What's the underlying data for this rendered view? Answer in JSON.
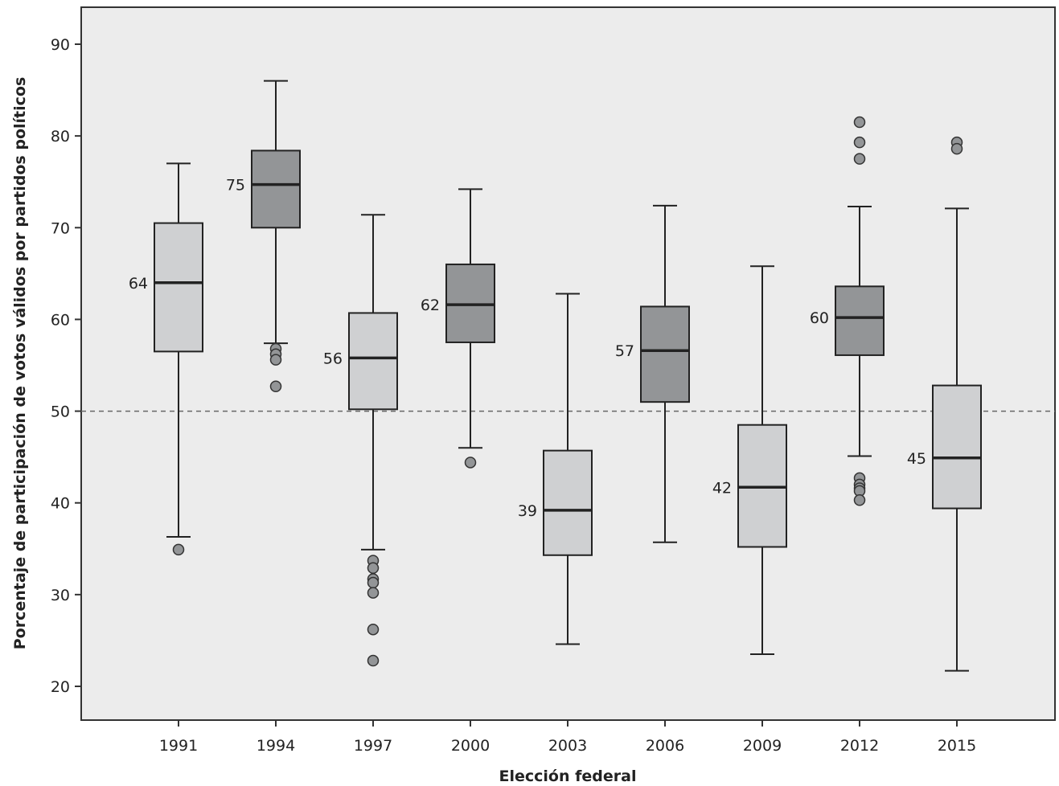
{
  "chart_data": {
    "type": "box",
    "xlabel": "Elección federal",
    "ylabel": "Porcentaje de participación de votos válidos por partidos políticos",
    "ylim": [
      17,
      94
    ],
    "yticks": [
      20,
      30,
      40,
      50,
      60,
      70,
      80,
      90
    ],
    "reference_line": {
      "y": 50,
      "style": "dashed"
    },
    "grid": false,
    "colors": {
      "light": "#cfd0d2",
      "dark": "#939597",
      "plot_bg": "#ececec",
      "line": "#222222"
    },
    "categories": [
      "1991",
      "1994",
      "1997",
      "2000",
      "2003",
      "2006",
      "2009",
      "2012",
      "2015"
    ],
    "boxes": [
      {
        "year": "1991",
        "whisker_low": 36.3,
        "q1": 56.5,
        "median": 64,
        "q3": 70.5,
        "whisker_high": 77.0,
        "median_label": "64",
        "shade": "light",
        "outliers": [
          34.9
        ]
      },
      {
        "year": "1994",
        "whisker_low": 57.4,
        "q1": 70.0,
        "median": 74.7,
        "q3": 78.4,
        "whisker_high": 86.0,
        "median_label": "75",
        "shade": "dark",
        "outliers": [
          56.8,
          56.2,
          55.6,
          52.7
        ]
      },
      {
        "year": "1997",
        "whisker_low": 34.9,
        "q1": 50.2,
        "median": 55.8,
        "q3": 60.7,
        "whisker_high": 71.4,
        "median_label": "56",
        "shade": "light",
        "outliers": [
          33.7,
          32.9,
          31.7,
          31.3,
          30.2,
          26.2,
          22.8
        ]
      },
      {
        "year": "2000",
        "whisker_low": 46.0,
        "q1": 57.5,
        "median": 61.6,
        "q3": 66.0,
        "whisker_high": 74.2,
        "median_label": "62",
        "shade": "dark",
        "outliers": [
          44.4
        ]
      },
      {
        "year": "2003",
        "whisker_low": 24.6,
        "q1": 34.3,
        "median": 39.2,
        "q3": 45.7,
        "whisker_high": 62.8,
        "median_label": "39",
        "shade": "light",
        "outliers": []
      },
      {
        "year": "2006",
        "whisker_low": 35.7,
        "q1": 51.0,
        "median": 56.6,
        "q3": 61.4,
        "whisker_high": 72.4,
        "median_label": "57",
        "shade": "dark",
        "outliers": []
      },
      {
        "year": "2009",
        "whisker_low": 23.5,
        "q1": 35.2,
        "median": 41.7,
        "q3": 48.5,
        "whisker_high": 65.8,
        "median_label": "42",
        "shade": "light",
        "outliers": []
      },
      {
        "year": "2012",
        "whisker_low": 45.1,
        "q1": 56.1,
        "median": 60.2,
        "q3": 63.6,
        "whisker_high": 72.3,
        "median_label": "60",
        "shade": "dark",
        "outliers": [
          81.5,
          79.3,
          77.5,
          42.7,
          42.0,
          41.6,
          41.3,
          40.3
        ]
      },
      {
        "year": "2015",
        "whisker_low": 21.7,
        "q1": 39.4,
        "median": 44.9,
        "q3": 52.8,
        "whisker_high": 72.1,
        "median_label": "45",
        "shade": "light",
        "outliers": [
          79.3,
          78.6
        ]
      }
    ]
  }
}
